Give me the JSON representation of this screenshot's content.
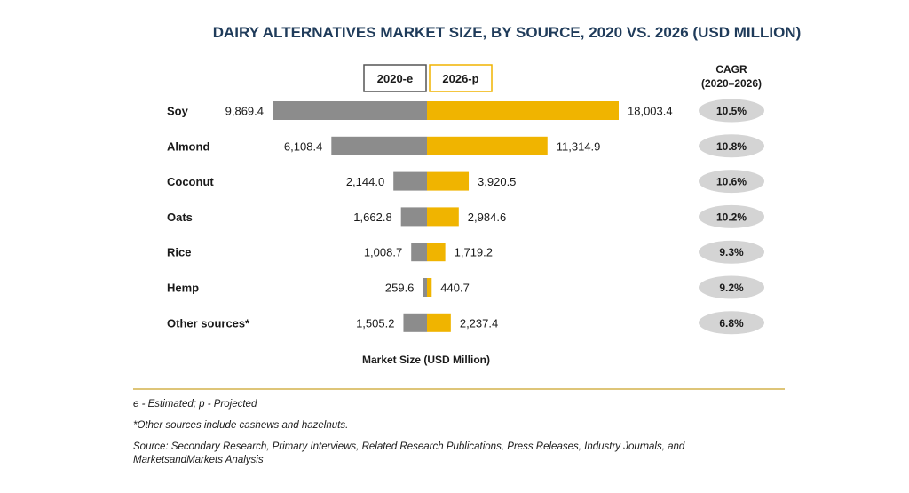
{
  "chart_data": {
    "type": "bar",
    "orientation": "horizontal-butterfly",
    "title": "DAIRY ALTERNATIVES MARKET SIZE, BY SOURCE, 2020 VS. 2026 (USD MILLION)",
    "xlabel": "Market Size (USD Million)",
    "categories": [
      "Soy",
      "Almond",
      "Coconut",
      "Oats",
      "Rice",
      "Hemp",
      "Other sources*"
    ],
    "series": [
      {
        "name": "2020-e",
        "color": "#8c8c8c",
        "values": [
          9869.4,
          6108.4,
          2144.0,
          1662.8,
          1008.7,
          259.6,
          1505.2
        ],
        "labels": [
          "9,869.4",
          "6,108.4",
          "2,144.0",
          "1,662.8",
          "1,008.7",
          "259.6",
          "1,505.2"
        ]
      },
      {
        "name": "2026-p",
        "color": "#f0b400",
        "values": [
          18003.4,
          11314.9,
          3920.5,
          2984.6,
          1719.2,
          440.7,
          2237.4
        ],
        "labels": [
          "18,003.4",
          "11,314.9",
          "3,920.5",
          "2,984.6",
          "1,719.2",
          "440.7",
          "2,237.4"
        ]
      }
    ],
    "cagr_header_line1": "CAGR",
    "cagr_header_line2": "(2020–2026)",
    "cagr": [
      "10.5%",
      "10.8%",
      "10.6%",
      "10.2%",
      "9.3%",
      "9.2%",
      "6.8%"
    ],
    "legend_placement": "top-center",
    "grid": false
  },
  "colors": {
    "title": "#1f3b5a",
    "gray": "#8c8c8c",
    "gold": "#f0b400",
    "pill": "#d4d4d4",
    "divider": "#c9a227"
  },
  "notes": {
    "estimated": "e - Estimated; p - Projected",
    "other": "*Other sources include cashews and hazelnuts.",
    "source": "Source: Secondary Research, Primary Interviews, Related Research Publications, Press Releases, Industry Journals, and MarketsandMarkets Analysis"
  }
}
